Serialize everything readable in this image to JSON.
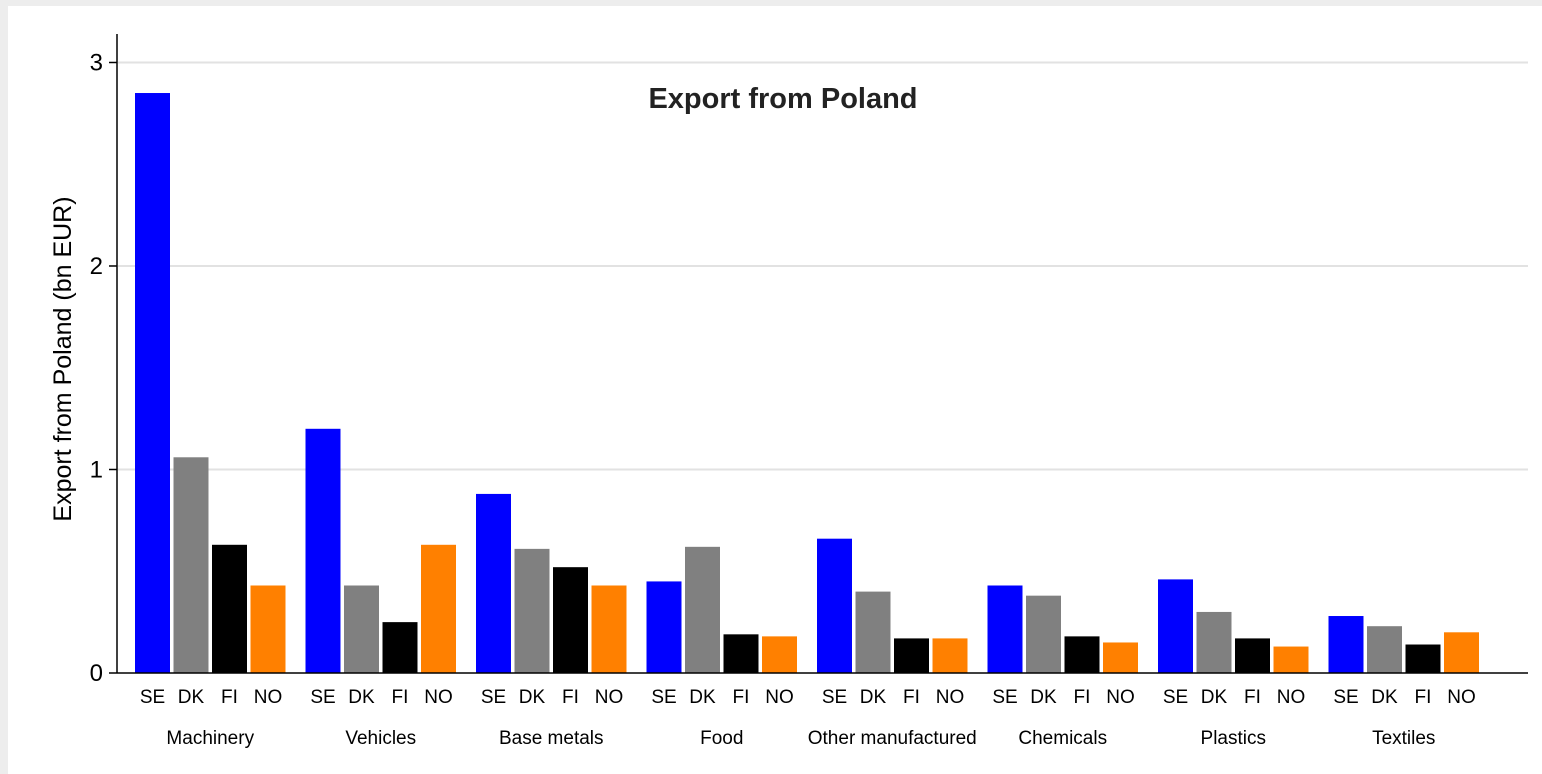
{
  "chart_data": {
    "type": "bar",
    "title": "Export from Poland",
    "ylabel": "Export from Poland (bn EUR)",
    "xlabel": "",
    "ylim": [
      0,
      3.14
    ],
    "yticks": [
      0,
      1,
      2,
      3
    ],
    "grid": true,
    "legend": "none",
    "categories": [
      "Machinery",
      "Vehicles",
      "Base metals",
      "Food",
      "Other manufactured",
      "Chemicals",
      "Plastics",
      "Textiles"
    ],
    "series": [
      {
        "name": "SE",
        "color": "#0000ff",
        "values": [
          2.85,
          1.2,
          0.88,
          0.45,
          0.66,
          0.43,
          0.46,
          0.28
        ]
      },
      {
        "name": "DK",
        "color": "#808080",
        "values": [
          1.06,
          0.43,
          0.61,
          0.62,
          0.4,
          0.38,
          0.3,
          0.23
        ]
      },
      {
        "name": "FI",
        "color": "#000000",
        "values": [
          0.63,
          0.25,
          0.52,
          0.19,
          0.17,
          0.18,
          0.17,
          0.14
        ]
      },
      {
        "name": "NO",
        "color": "#ff8000",
        "values": [
          0.43,
          0.63,
          0.43,
          0.18,
          0.17,
          0.15,
          0.13,
          0.2
        ]
      }
    ]
  }
}
